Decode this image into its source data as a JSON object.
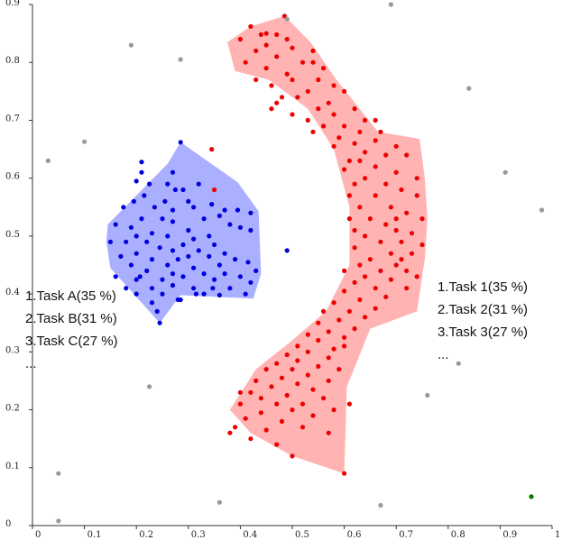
{
  "chart_data": {
    "type": "scatter",
    "xlim": [
      0,
      1
    ],
    "ylim": [
      0,
      0.9
    ],
    "x_ticks": [
      "0",
      "0.1",
      "0.2",
      "0.3",
      "0.4",
      "0.5",
      "0.6",
      "0.7",
      "0.8",
      "0.9",
      "1"
    ],
    "y_ticks": [
      "0",
      "0.1",
      "0.2",
      "0.3",
      "0.4",
      "0.5",
      "0.6",
      "0.7",
      "0.8",
      "0.9"
    ],
    "grid": false,
    "legend_left": {
      "items": [
        "1.Task A(35 %)",
        "2.Task B(31 %)",
        "3.Task C(27 %)",
        "..."
      ]
    },
    "legend_right": {
      "items": [
        "1.Task 1(35 %)",
        "2.Task 2(31 %)",
        "3.Task 3(27 %)",
        "..."
      ]
    },
    "clusters": [
      {
        "color": "#0000dd",
        "hull_color": "#aab0ff",
        "hull": [
          [
            0.285,
            0.662
          ],
          [
            0.395,
            0.593
          ],
          [
            0.435,
            0.543
          ],
          [
            0.44,
            0.435
          ],
          [
            0.425,
            0.392
          ],
          [
            0.285,
            0.398
          ],
          [
            0.245,
            0.35
          ],
          [
            0.15,
            0.445
          ],
          [
            0.142,
            0.49
          ],
          [
            0.145,
            0.52
          ],
          [
            0.26,
            0.625
          ]
        ],
        "points": [
          [
            0.285,
            0.662
          ],
          [
            0.21,
            0.628
          ],
          [
            0.27,
            0.61
          ],
          [
            0.21,
            0.61
          ],
          [
            0.2,
            0.595
          ],
          [
            0.225,
            0.59
          ],
          [
            0.26,
            0.59
          ],
          [
            0.32,
            0.59
          ],
          [
            0.275,
            0.58
          ],
          [
            0.29,
            0.58
          ],
          [
            0.215,
            0.57
          ],
          [
            0.195,
            0.56
          ],
          [
            0.255,
            0.56
          ],
          [
            0.3,
            0.56
          ],
          [
            0.345,
            0.555
          ],
          [
            0.175,
            0.55
          ],
          [
            0.235,
            0.55
          ],
          [
            0.27,
            0.545
          ],
          [
            0.31,
            0.55
          ],
          [
            0.37,
            0.545
          ],
          [
            0.395,
            0.545
          ],
          [
            0.21,
            0.53
          ],
          [
            0.25,
            0.53
          ],
          [
            0.33,
            0.53
          ],
          [
            0.36,
            0.535
          ],
          [
            0.42,
            0.54
          ],
          [
            0.16,
            0.52
          ],
          [
            0.19,
            0.515
          ],
          [
            0.27,
            0.525
          ],
          [
            0.3,
            0.51
          ],
          [
            0.38,
            0.52
          ],
          [
            0.4,
            0.515
          ],
          [
            0.2,
            0.5
          ],
          [
            0.23,
            0.505
          ],
          [
            0.26,
            0.5
          ],
          [
            0.31,
            0.495
          ],
          [
            0.34,
            0.5
          ],
          [
            0.42,
            0.51
          ],
          [
            0.15,
            0.49
          ],
          [
            0.18,
            0.49
          ],
          [
            0.22,
            0.49
          ],
          [
            0.29,
            0.485
          ],
          [
            0.35,
            0.485
          ],
          [
            0.245,
            0.48
          ],
          [
            0.27,
            0.475
          ],
          [
            0.32,
            0.475
          ],
          [
            0.37,
            0.47
          ],
          [
            0.17,
            0.465
          ],
          [
            0.2,
            0.47
          ],
          [
            0.23,
            0.46
          ],
          [
            0.28,
            0.46
          ],
          [
            0.3,
            0.465
          ],
          [
            0.34,
            0.465
          ],
          [
            0.19,
            0.45
          ],
          [
            0.26,
            0.45
          ],
          [
            0.31,
            0.445
          ],
          [
            0.36,
            0.45
          ],
          [
            0.39,
            0.46
          ],
          [
            0.415,
            0.455
          ],
          [
            0.22,
            0.44
          ],
          [
            0.27,
            0.435
          ],
          [
            0.33,
            0.435
          ],
          [
            0.37,
            0.435
          ],
          [
            0.43,
            0.44
          ],
          [
            0.16,
            0.43
          ],
          [
            0.2,
            0.425
          ],
          [
            0.25,
            0.425
          ],
          [
            0.29,
            0.43
          ],
          [
            0.35,
            0.425
          ],
          [
            0.4,
            0.43
          ],
          [
            0.42,
            0.42
          ],
          [
            0.18,
            0.41
          ],
          [
            0.23,
            0.41
          ],
          [
            0.27,
            0.415
          ],
          [
            0.31,
            0.41
          ],
          [
            0.38,
            0.41
          ],
          [
            0.2,
            0.4
          ],
          [
            0.25,
            0.4
          ],
          [
            0.33,
            0.4
          ],
          [
            0.36,
            0.398
          ],
          [
            0.41,
            0.4
          ],
          [
            0.23,
            0.385
          ],
          [
            0.28,
            0.39
          ],
          [
            0.245,
            0.35
          ],
          [
            0.285,
            0.39
          ],
          [
            0.24,
            0.37
          ],
          [
            0.315,
            0.4
          ],
          [
            0.347,
            0.41
          ],
          [
            0.207,
            0.43
          ]
        ]
      },
      {
        "color": "#ee0000",
        "hull_color": "#ffb3b3",
        "hull": [
          [
            0.485,
            0.88
          ],
          [
            0.535,
            0.835
          ],
          [
            0.585,
            0.77
          ],
          [
            0.665,
            0.68
          ],
          [
            0.745,
            0.668
          ],
          [
            0.755,
            0.6
          ],
          [
            0.76,
            0.53
          ],
          [
            0.755,
            0.46
          ],
          [
            0.74,
            0.37
          ],
          [
            0.65,
            0.34
          ],
          [
            0.605,
            0.24
          ],
          [
            0.6,
            0.09
          ],
          [
            0.5,
            0.12
          ],
          [
            0.42,
            0.16
          ],
          [
            0.38,
            0.2
          ],
          [
            0.43,
            0.27
          ],
          [
            0.5,
            0.32
          ],
          [
            0.565,
            0.37
          ],
          [
            0.61,
            0.45
          ],
          [
            0.61,
            0.55
          ],
          [
            0.58,
            0.65
          ],
          [
            0.53,
            0.72
          ],
          [
            0.455,
            0.77
          ],
          [
            0.39,
            0.785
          ],
          [
            0.375,
            0.835
          ],
          [
            0.42,
            0.862
          ]
        ],
        "points": [
          [
            0.485,
            0.88
          ],
          [
            0.42,
            0.862
          ],
          [
            0.44,
            0.848
          ],
          [
            0.47,
            0.848
          ],
          [
            0.49,
            0.84
          ],
          [
            0.4,
            0.84
          ],
          [
            0.45,
            0.83
          ],
          [
            0.5,
            0.825
          ],
          [
            0.54,
            0.82
          ],
          [
            0.43,
            0.82
          ],
          [
            0.47,
            0.81
          ],
          [
            0.52,
            0.8
          ],
          [
            0.41,
            0.8
          ],
          [
            0.56,
            0.79
          ],
          [
            0.45,
            0.79
          ],
          [
            0.49,
            0.78
          ],
          [
            0.5,
            0.77
          ],
          [
            0.55,
            0.77
          ],
          [
            0.58,
            0.76
          ],
          [
            0.43,
            0.77
          ],
          [
            0.46,
            0.76
          ],
          [
            0.53,
            0.75
          ],
          [
            0.6,
            0.75
          ],
          [
            0.48,
            0.74
          ],
          [
            0.51,
            0.74
          ],
          [
            0.57,
            0.73
          ],
          [
            0.47,
            0.73
          ],
          [
            0.55,
            0.72
          ],
          [
            0.62,
            0.72
          ],
          [
            0.5,
            0.71
          ],
          [
            0.58,
            0.71
          ],
          [
            0.64,
            0.7
          ],
          [
            0.53,
            0.7
          ],
          [
            0.6,
            0.69
          ],
          [
            0.56,
            0.69
          ],
          [
            0.63,
            0.68
          ],
          [
            0.67,
            0.68
          ],
          [
            0.59,
            0.67
          ],
          [
            0.54,
            0.68
          ],
          [
            0.66,
            0.665
          ],
          [
            0.62,
            0.66
          ],
          [
            0.7,
            0.655
          ],
          [
            0.58,
            0.655
          ],
          [
            0.64,
            0.645
          ],
          [
            0.68,
            0.64
          ],
          [
            0.61,
            0.63
          ],
          [
            0.72,
            0.64
          ],
          [
            0.66,
            0.62
          ],
          [
            0.6,
            0.615
          ],
          [
            0.7,
            0.61
          ],
          [
            0.64,
            0.6
          ],
          [
            0.74,
            0.6
          ],
          [
            0.62,
            0.59
          ],
          [
            0.68,
            0.59
          ],
          [
            0.71,
            0.58
          ],
          [
            0.61,
            0.57
          ],
          [
            0.66,
            0.57
          ],
          [
            0.74,
            0.57
          ],
          [
            0.63,
            0.55
          ],
          [
            0.69,
            0.55
          ],
          [
            0.72,
            0.54
          ],
          [
            0.61,
            0.53
          ],
          [
            0.65,
            0.53
          ],
          [
            0.75,
            0.53
          ],
          [
            0.68,
            0.52
          ],
          [
            0.62,
            0.51
          ],
          [
            0.7,
            0.51
          ],
          [
            0.73,
            0.505
          ],
          [
            0.64,
            0.5
          ],
          [
            0.67,
            0.49
          ],
          [
            0.71,
            0.49
          ],
          [
            0.75,
            0.485
          ],
          [
            0.62,
            0.48
          ],
          [
            0.69,
            0.47
          ],
          [
            0.73,
            0.47
          ],
          [
            0.65,
            0.46
          ],
          [
            0.63,
            0.45
          ],
          [
            0.7,
            0.45
          ],
          [
            0.67,
            0.44
          ],
          [
            0.72,
            0.44
          ],
          [
            0.6,
            0.44
          ],
          [
            0.64,
            0.43
          ],
          [
            0.69,
            0.425
          ],
          [
            0.62,
            0.42
          ],
          [
            0.66,
            0.41
          ],
          [
            0.72,
            0.41
          ],
          [
            0.6,
            0.405
          ],
          [
            0.68,
            0.395
          ],
          [
            0.63,
            0.39
          ],
          [
            0.58,
            0.385
          ],
          [
            0.66,
            0.375
          ],
          [
            0.61,
            0.37
          ],
          [
            0.56,
            0.37
          ],
          [
            0.64,
            0.36
          ],
          [
            0.59,
            0.355
          ],
          [
            0.55,
            0.35
          ],
          [
            0.62,
            0.34
          ],
          [
            0.57,
            0.335
          ],
          [
            0.53,
            0.33
          ],
          [
            0.6,
            0.325
          ],
          [
            0.55,
            0.32
          ],
          [
            0.51,
            0.31
          ],
          [
            0.58,
            0.305
          ],
          [
            0.53,
            0.3
          ],
          [
            0.49,
            0.295
          ],
          [
            0.57,
            0.29
          ],
          [
            0.51,
            0.285
          ],
          [
            0.47,
            0.28
          ],
          [
            0.55,
            0.275
          ],
          [
            0.5,
            0.27
          ],
          [
            0.45,
            0.27
          ],
          [
            0.53,
            0.26
          ],
          [
            0.48,
            0.255
          ],
          [
            0.43,
            0.25
          ],
          [
            0.57,
            0.25
          ],
          [
            0.51,
            0.245
          ],
          [
            0.46,
            0.24
          ],
          [
            0.54,
            0.235
          ],
          [
            0.42,
            0.23
          ],
          [
            0.49,
            0.225
          ],
          [
            0.56,
            0.22
          ],
          [
            0.44,
            0.22
          ],
          [
            0.52,
            0.21
          ],
          [
            0.47,
            0.21
          ],
          [
            0.4,
            0.21
          ],
          [
            0.5,
            0.2
          ],
          [
            0.58,
            0.2
          ],
          [
            0.44,
            0.195
          ],
          [
            0.54,
            0.19
          ],
          [
            0.41,
            0.185
          ],
          [
            0.48,
            0.18
          ],
          [
            0.39,
            0.17
          ],
          [
            0.45,
            0.165
          ],
          [
            0.38,
            0.16
          ],
          [
            0.6,
            0.09
          ],
          [
            0.5,
            0.12
          ],
          [
            0.42,
            0.15
          ],
          [
            0.61,
            0.21
          ],
          [
            0.52,
            0.17
          ],
          [
            0.47,
            0.14
          ],
          [
            0.57,
            0.16
          ],
          [
            0.345,
            0.65
          ],
          [
            0.35,
            0.58
          ],
          [
            0.45,
            0.85
          ],
          [
            0.63,
            0.63
          ],
          [
            0.7,
            0.53
          ],
          [
            0.59,
            0.27
          ],
          [
            0.6,
            0.31
          ],
          [
            0.4,
            0.23
          ],
          [
            0.54,
            0.8
          ],
          [
            0.46,
            0.72
          ],
          [
            0.66,
            0.7
          ],
          [
            0.71,
            0.46
          ],
          [
            0.74,
            0.43
          ]
        ]
      },
      {
        "color": "#999999",
        "hull_color": "",
        "hull": [],
        "points": [
          [
            0.49,
            0.875
          ],
          [
            0.69,
            0.9
          ],
          [
            0.19,
            0.83
          ],
          [
            0.285,
            0.805
          ],
          [
            0.84,
            0.755
          ],
          [
            0.1,
            0.663
          ],
          [
            0.03,
            0.63
          ],
          [
            0.91,
            0.61
          ],
          [
            0.98,
            0.545
          ],
          [
            0.82,
            0.28
          ],
          [
            0.76,
            0.225
          ],
          [
            0.225,
            0.24
          ],
          [
            0.05,
            0.09
          ],
          [
            0.36,
            0.04
          ],
          [
            0.67,
            0.035
          ],
          [
            0.05,
            0.008
          ]
        ]
      },
      {
        "color": "#007700",
        "hull_color": "",
        "hull": [],
        "points": [
          [
            0.96,
            0.05
          ]
        ]
      },
      {
        "color": "#0000dd",
        "hull_color": "",
        "hull": [],
        "points": [
          [
            0.49,
            0.475
          ]
        ]
      }
    ]
  }
}
